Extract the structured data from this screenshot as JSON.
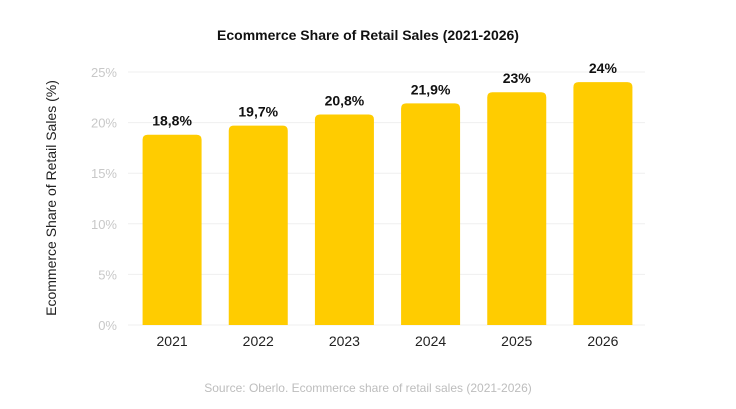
{
  "chart_data": {
    "type": "bar",
    "title": "Ecommerce Share of Retail Sales (2021-2026)",
    "xlabel": "",
    "ylabel": "Ecommerce Share of Retail Sales (%)",
    "categories": [
      "2021",
      "2022",
      "2023",
      "2024",
      "2025",
      "2026"
    ],
    "values": [
      18.8,
      19.7,
      20.8,
      21.9,
      23,
      24
    ],
    "data_labels": [
      "18,8%",
      "19,7%",
      "20,8%",
      "21,9%",
      "23%",
      "24%"
    ],
    "ylim": [
      0,
      25
    ],
    "yticks": [
      0,
      5,
      10,
      15,
      20,
      25
    ],
    "ytick_labels": [
      "0%",
      "5%",
      "10%",
      "15%",
      "20%",
      "25%"
    ],
    "grid": true,
    "bar_color": "#FFCC00",
    "source": "Source:  Oberlo. Ecommerce share of retail sales (2021-2026)"
  }
}
